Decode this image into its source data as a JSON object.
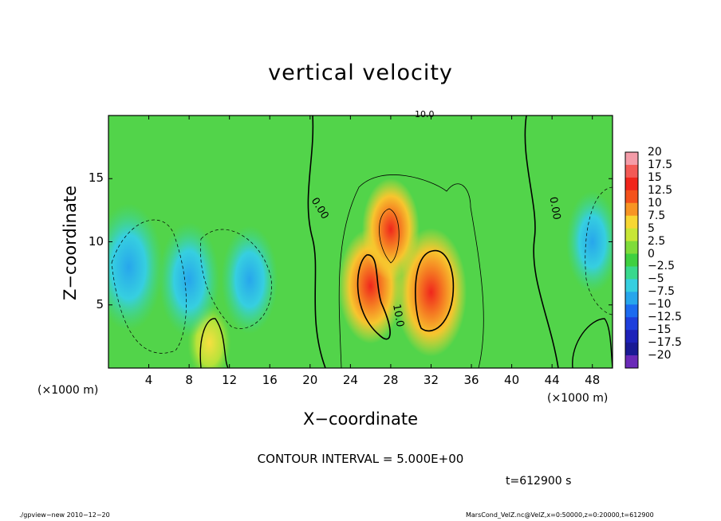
{
  "chart_data": {
    "type": "heatmap",
    "title": "vertical velocity",
    "xlabel": "X−coordinate",
    "ylabel": "Z−coordinate",
    "x_unit_label": "(×1000 m)",
    "x_ticks": [
      "4",
      "8",
      "12",
      "16",
      "20",
      "24",
      "28",
      "32",
      "36",
      "40",
      "44",
      "48"
    ],
    "y_ticks": [
      "5",
      "10",
      "15"
    ],
    "xlim": [
      0,
      50
    ],
    "ylim": [
      0,
      20
    ],
    "colorbar": {
      "labels": [
        "20",
        "17.5",
        "15",
        "12.5",
        "10",
        "7.5",
        "5",
        "2.5",
        "0",
        "−2.5",
        "−5",
        "−7.5",
        "−10",
        "−12.5",
        "−15",
        "−17.5",
        "−20"
      ],
      "values": [
        20,
        17.5,
        15,
        12.5,
        10,
        7.5,
        5,
        2.5,
        0,
        -2.5,
        -5,
        -7.5,
        -10,
        -12.5,
        -15,
        -17.5,
        -20
      ],
      "colors": [
        "#f49ca8",
        "#f35a56",
        "#f0261c",
        "#f4521c",
        "#f79524",
        "#f7d733",
        "#c8e636",
        "#7fdc3a",
        "#3fd040",
        "#39d98d",
        "#36cfe0",
        "#27a6ec",
        "#1c6bf0",
        "#1e3fdc",
        "#1e22b9",
        "#1a1a94",
        "#6a2ab8"
      ]
    },
    "contour_labels": [
      "0.00",
      "0.00",
      "10.0",
      "10.0"
    ],
    "features": [
      {
        "kind": "updraft",
        "x": 26,
        "z": 6.5,
        "w": 12
      },
      {
        "kind": "updraft",
        "x": 28,
        "z": 11,
        "w": 10
      },
      {
        "kind": "updraft",
        "x": 32,
        "z": 6,
        "w": 14
      },
      {
        "kind": "updraft",
        "x": 10,
        "z": 2,
        "w": 6
      },
      {
        "kind": "downdraft",
        "x": 2,
        "z": 8,
        "w": -5
      },
      {
        "kind": "downdraft",
        "x": 8,
        "z": 7,
        "w": -4
      },
      {
        "kind": "downdraft",
        "x": 14,
        "z": 7,
        "w": -3.5
      },
      {
        "kind": "downdraft",
        "x": 48,
        "z": 10,
        "w": -3
      }
    ],
    "contour_interval_text": "CONTOUR INTERVAL = 5.000E+00",
    "time_text": "t=612900 s"
  },
  "footer": {
    "left": "./gpview−new   2010−12−20",
    "right": "MarsCond_VelZ.nc@VelZ,x=0:50000,z=0:20000,t=612900"
  }
}
